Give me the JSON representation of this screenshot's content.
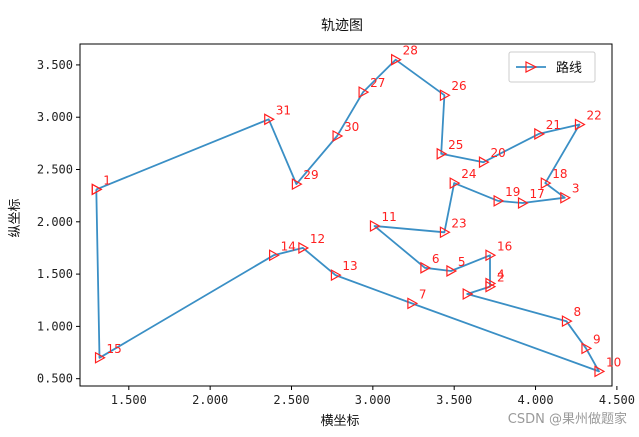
{
  "chart_data": {
    "type": "line",
    "title": "轨迹图",
    "xlabel": "横坐标",
    "ylabel": "纵坐标",
    "xlim": [
      1.2,
      4.47
    ],
    "ylim": [
      0.43,
      3.7
    ],
    "xticks": [
      1.5,
      2.0,
      2.5,
      3.0,
      3.5,
      4.0,
      4.5
    ],
    "xtick_labels": [
      "1.500",
      "2.000",
      "2.500",
      "3.000",
      "3.500",
      "4.000",
      "4.500"
    ],
    "yticks": [
      0.5,
      1.0,
      1.5,
      2.0,
      2.5,
      3.0,
      3.5
    ],
    "ytick_labels": [
      "0.500",
      "1.000",
      "1.500",
      "2.000",
      "2.500",
      "3.000",
      "3.500"
    ],
    "grid": false,
    "legend_position": "top-right",
    "series": [
      {
        "name": "路线",
        "color": "#3a8fc5",
        "marker_color": "#ff2020",
        "marker": "triangle-right",
        "points": [
          {
            "id": "1",
            "x": 1.3,
            "y": 2.31
          },
          {
            "id": "31",
            "x": 2.36,
            "y": 2.98
          },
          {
            "id": "29",
            "x": 2.53,
            "y": 2.36
          },
          {
            "id": "30",
            "x": 2.78,
            "y": 2.82
          },
          {
            "id": "27",
            "x": 2.94,
            "y": 3.24
          },
          {
            "id": "28",
            "x": 3.14,
            "y": 3.55
          },
          {
            "id": "26",
            "x": 3.44,
            "y": 3.21
          },
          {
            "id": "25",
            "x": 3.42,
            "y": 2.65
          },
          {
            "id": "20",
            "x": 3.68,
            "y": 2.57
          },
          {
            "id": "21",
            "x": 4.02,
            "y": 2.84
          },
          {
            "id": "22",
            "x": 4.27,
            "y": 2.93
          },
          {
            "id": "18",
            "x": 4.06,
            "y": 2.37
          },
          {
            "id": "3",
            "x": 4.18,
            "y": 2.23
          },
          {
            "id": "17",
            "x": 3.92,
            "y": 2.18
          },
          {
            "id": "19",
            "x": 3.77,
            "y": 2.2
          },
          {
            "id": "24",
            "x": 3.5,
            "y": 2.37
          },
          {
            "id": "23",
            "x": 3.44,
            "y": 1.9
          },
          {
            "id": "11",
            "x": 3.01,
            "y": 1.96
          },
          {
            "id": "6",
            "x": 3.32,
            "y": 1.56
          },
          {
            "id": "5",
            "x": 3.48,
            "y": 1.53
          },
          {
            "id": "16",
            "x": 3.72,
            "y": 1.68
          },
          {
            "id": "4",
            "x": 3.72,
            "y": 1.41
          },
          {
            "id": "2",
            "x": 3.72,
            "y": 1.38
          },
          {
            "id": "4b",
            "x": 3.58,
            "y": 1.31
          },
          {
            "id": "8",
            "x": 4.19,
            "y": 1.05
          },
          {
            "id": "9",
            "x": 4.31,
            "y": 0.79
          },
          {
            "id": "10",
            "x": 4.39,
            "y": 0.57
          },
          {
            "id": "7",
            "x": 3.24,
            "y": 1.22
          },
          {
            "id": "13",
            "x": 2.77,
            "y": 1.49
          },
          {
            "id": "12",
            "x": 2.57,
            "y": 1.75
          },
          {
            "id": "14",
            "x": 2.39,
            "y": 1.68
          },
          {
            "id": "15",
            "x": 1.32,
            "y": 0.7
          },
          {
            "id": "1e",
            "x": 1.3,
            "y": 2.31
          }
        ]
      }
    ],
    "point_labels": [
      {
        "text": "1",
        "x": 1.3,
        "y": 2.31
      },
      {
        "text": "31",
        "x": 2.36,
        "y": 2.98
      },
      {
        "text": "29",
        "x": 2.53,
        "y": 2.36
      },
      {
        "text": "30",
        "x": 2.78,
        "y": 2.82
      },
      {
        "text": "27",
        "x": 2.94,
        "y": 3.24
      },
      {
        "text": "28",
        "x": 3.14,
        "y": 3.55
      },
      {
        "text": "26",
        "x": 3.44,
        "y": 3.21
      },
      {
        "text": "25",
        "x": 3.42,
        "y": 2.65
      },
      {
        "text": "20",
        "x": 3.68,
        "y": 2.57
      },
      {
        "text": "21",
        "x": 4.02,
        "y": 2.84
      },
      {
        "text": "22",
        "x": 4.27,
        "y": 2.93
      },
      {
        "text": "18",
        "x": 4.06,
        "y": 2.37
      },
      {
        "text": "3",
        "x": 4.18,
        "y": 2.23
      },
      {
        "text": "17",
        "x": 3.92,
        "y": 2.18
      },
      {
        "text": "19",
        "x": 3.77,
        "y": 2.2
      },
      {
        "text": "24",
        "x": 3.5,
        "y": 2.37
      },
      {
        "text": "23",
        "x": 3.44,
        "y": 1.9
      },
      {
        "text": "11",
        "x": 3.01,
        "y": 1.96
      },
      {
        "text": "6",
        "x": 3.32,
        "y": 1.56
      },
      {
        "text": "5",
        "x": 3.48,
        "y": 1.53
      },
      {
        "text": "16",
        "x": 3.72,
        "y": 1.68
      },
      {
        "text": "4",
        "x": 3.72,
        "y": 1.41
      },
      {
        "text": "2",
        "x": 3.72,
        "y": 1.38
      },
      {
        "text": "8",
        "x": 4.19,
        "y": 1.05
      },
      {
        "text": "9",
        "x": 4.31,
        "y": 0.79
      },
      {
        "text": "10",
        "x": 4.39,
        "y": 0.57
      },
      {
        "text": "7",
        "x": 3.24,
        "y": 1.22
      },
      {
        "text": "13",
        "x": 2.77,
        "y": 1.49
      },
      {
        "text": "12",
        "x": 2.57,
        "y": 1.75
      },
      {
        "text": "14",
        "x": 2.39,
        "y": 1.68
      },
      {
        "text": "15",
        "x": 1.32,
        "y": 0.7
      }
    ]
  },
  "watermark": "CSDN @果州做题家"
}
